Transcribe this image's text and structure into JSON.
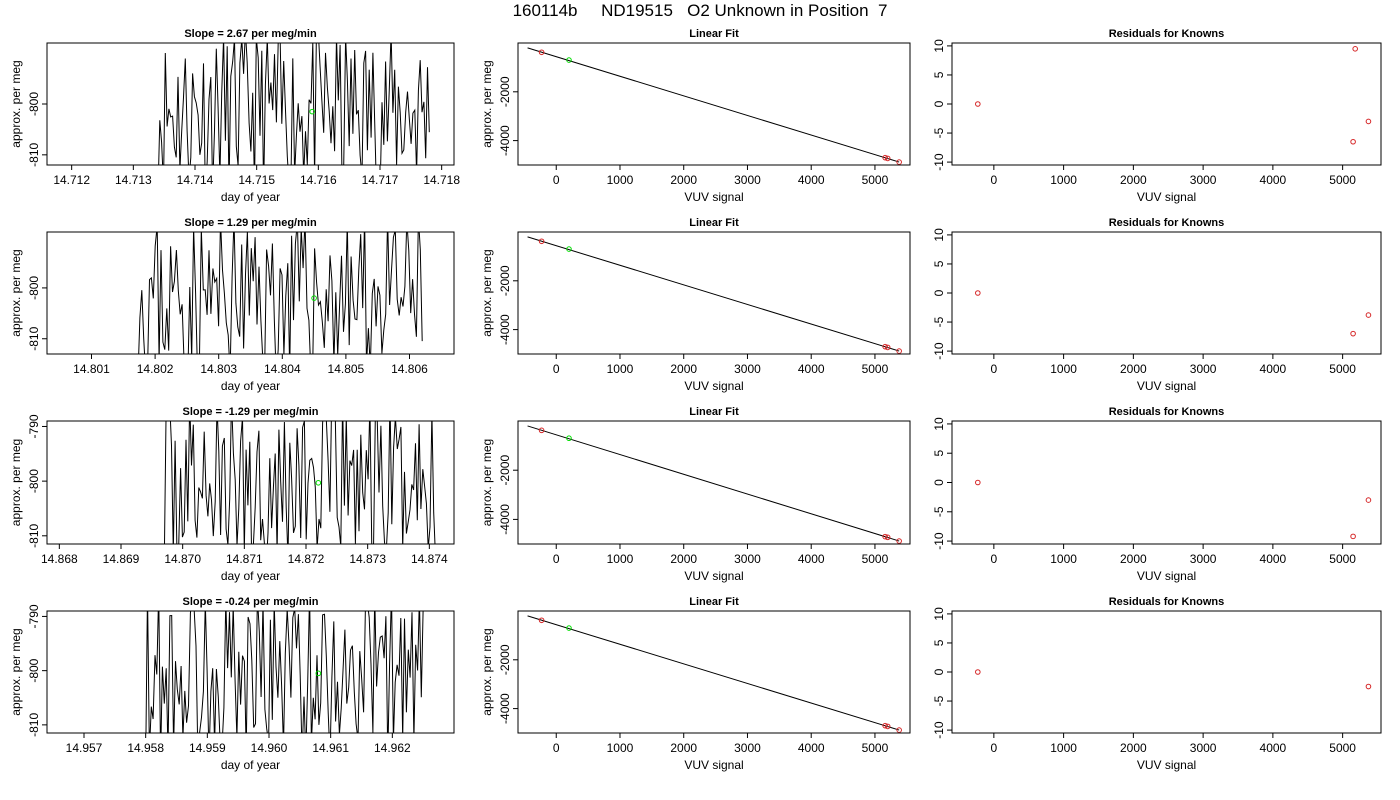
{
  "title": "160114b     ND19515   O2 Unknown in Position  7",
  "colors": {
    "line": "#000000",
    "known_point": "#d62728",
    "unknown_point": "#00dd00",
    "frame": "#000000"
  },
  "chart_data": [
    {
      "type": "line",
      "panel": "time-series-1",
      "title": "Slope =  2.67  per meg/min",
      "xlabel": "day of year",
      "ylabel": "approx. per meg",
      "xlim": [
        14.7116,
        14.7182
      ],
      "ylim": [
        -812,
        -788
      ],
      "xticks": [
        "14.712",
        "14.713",
        "14.714",
        "14.715",
        "14.716",
        "14.717",
        "14.718"
      ],
      "yticks": [
        "-810",
        "-800"
      ],
      "x_start": 14.7134,
      "x_end": 14.7178,
      "mean_point": [
        14.7159,
        -801.5
      ],
      "seed": 11
    },
    {
      "type": "scatter",
      "panel": "linear-fit-1",
      "title": "Linear Fit",
      "xlabel": "VUV signal",
      "ylabel": "approx. per meg",
      "xlim": [
        -600,
        5550
      ],
      "ylim": [
        -5000,
        0
      ],
      "xticks": [
        "0",
        "1000",
        "2000",
        "3000",
        "4000",
        "5000"
      ],
      "yticks": [
        "-2000",
        "-4000"
      ],
      "fit_line": {
        "x": [
          -450,
          5380
        ],
        "y": [
          -200,
          -4880
        ]
      },
      "knowns": [
        {
          "x": -230,
          "y": -380
        },
        {
          "x": 5160,
          "y": -4700
        },
        {
          "x": 5200,
          "y": -4730
        },
        {
          "x": 5380,
          "y": -4880
        }
      ],
      "unknown": {
        "x": 200,
        "y": -700
      }
    },
    {
      "type": "scatter",
      "panel": "residuals-1",
      "title": "Residuals for Knowns",
      "xlabel": "VUV signal",
      "ylabel": "",
      "xlim": [
        -600,
        5550
      ],
      "ylim": [
        -10.5,
        10.5
      ],
      "xticks": [
        "0",
        "1000",
        "2000",
        "3000",
        "4000",
        "5000"
      ],
      "yticks": [
        "-10",
        "-5",
        "0",
        "5",
        "10"
      ],
      "knowns": [
        {
          "x": -230,
          "y": 0
        },
        {
          "x": 5150,
          "y": -6.5
        },
        {
          "x": 5180,
          "y": 9.5
        },
        {
          "x": 5370,
          "y": -3.0
        }
      ]
    },
    {
      "type": "line",
      "panel": "time-series-2",
      "title": "Slope =  1.29  per meg/min",
      "xlabel": "day of year",
      "ylabel": "approx. per meg",
      "xlim": [
        14.8003,
        14.8067
      ],
      "ylim": [
        -813,
        -789
      ],
      "xticks": [
        "14.801",
        "14.802",
        "14.803",
        "14.804",
        "14.805",
        "14.806"
      ],
      "yticks": [
        "-810",
        "-800"
      ],
      "x_start": 14.8017,
      "x_end": 14.8062,
      "mean_point": [
        14.8045,
        -802
      ],
      "seed": 23
    },
    {
      "type": "scatter",
      "panel": "linear-fit-2",
      "title": "Linear Fit",
      "xlabel": "VUV signal",
      "ylabel": "approx. per meg",
      "xlim": [
        -600,
        5550
      ],
      "ylim": [
        -5000,
        0
      ],
      "xticks": [
        "0",
        "1000",
        "2000",
        "3000",
        "4000",
        "5000"
      ],
      "yticks": [
        "-2000",
        "-4000"
      ],
      "fit_line": {
        "x": [
          -450,
          5380
        ],
        "y": [
          -200,
          -4880
        ]
      },
      "knowns": [
        {
          "x": -230,
          "y": -380
        },
        {
          "x": 5160,
          "y": -4700
        },
        {
          "x": 5200,
          "y": -4730
        },
        {
          "x": 5380,
          "y": -4880
        }
      ],
      "unknown": {
        "x": 200,
        "y": -700
      }
    },
    {
      "type": "scatter",
      "panel": "residuals-2",
      "title": "Residuals for Knowns",
      "xlabel": "VUV signal",
      "ylabel": "",
      "xlim": [
        -600,
        5550
      ],
      "ylim": [
        -10.5,
        10.5
      ],
      "xticks": [
        "0",
        "1000",
        "2000",
        "3000",
        "4000",
        "5000"
      ],
      "yticks": [
        "-10",
        "-5",
        "0",
        "5",
        "10"
      ],
      "knowns": [
        {
          "x": -230,
          "y": 0
        },
        {
          "x": 5150,
          "y": -7.0
        },
        {
          "x": 5370,
          "y": -3.8
        }
      ]
    },
    {
      "type": "line",
      "panel": "time-series-3",
      "title": "Slope =  -1.29  per meg/min",
      "xlabel": "day of year",
      "ylabel": "approx. per meg",
      "xlim": [
        14.8678,
        14.8744
      ],
      "ylim": [
        -811.5,
        -789
      ],
      "xticks": [
        "14.868",
        "14.869",
        "14.870",
        "14.871",
        "14.872",
        "14.873",
        "14.874"
      ],
      "yticks": [
        "-810",
        "-800",
        "-790"
      ],
      "x_start": 14.8697,
      "x_end": 14.8741,
      "mean_point": [
        14.8722,
        -800.3
      ],
      "seed": 37
    },
    {
      "type": "scatter",
      "panel": "linear-fit-3",
      "title": "Linear Fit",
      "xlabel": "VUV signal",
      "ylabel": "approx. per meg",
      "xlim": [
        -600,
        5550
      ],
      "ylim": [
        -5000,
        0
      ],
      "xticks": [
        "0",
        "1000",
        "2000",
        "3000",
        "4000",
        "5000"
      ],
      "yticks": [
        "-2000",
        "-4000"
      ],
      "fit_line": {
        "x": [
          -450,
          5380
        ],
        "y": [
          -200,
          -4880
        ]
      },
      "knowns": [
        {
          "x": -230,
          "y": -380
        },
        {
          "x": 5160,
          "y": -4700
        },
        {
          "x": 5200,
          "y": -4730
        },
        {
          "x": 5380,
          "y": -4880
        }
      ],
      "unknown": {
        "x": 200,
        "y": -700
      }
    },
    {
      "type": "scatter",
      "panel": "residuals-3",
      "title": "Residuals for Knowns",
      "xlabel": "VUV signal",
      "ylabel": "",
      "xlim": [
        -600,
        5550
      ],
      "ylim": [
        -10.5,
        10.5
      ],
      "xticks": [
        "0",
        "1000",
        "2000",
        "3000",
        "4000",
        "5000"
      ],
      "yticks": [
        "-10",
        "-5",
        "0",
        "5",
        "10"
      ],
      "knowns": [
        {
          "x": -230,
          "y": 0
        },
        {
          "x": 5150,
          "y": -9.2
        },
        {
          "x": 5370,
          "y": -3.0
        }
      ]
    },
    {
      "type": "line",
      "panel": "time-series-4",
      "title": "Slope =  -0.24  per meg/min",
      "xlabel": "day of year",
      "ylabel": "approx. per meg",
      "xlim": [
        14.9564,
        14.963
      ],
      "ylim": [
        -811.5,
        -789
      ],
      "xticks": [
        "14.957",
        "14.958",
        "14.959",
        "14.960",
        "14.961",
        "14.962"
      ],
      "yticks": [
        "-810",
        "-800",
        "-790"
      ],
      "x_start": 14.958,
      "x_end": 14.9625,
      "mean_point": [
        14.9608,
        -800.5
      ],
      "seed": 53
    },
    {
      "type": "scatter",
      "panel": "linear-fit-4",
      "title": "Linear Fit",
      "xlabel": "VUV signal",
      "ylabel": "approx. per meg",
      "xlim": [
        -600,
        5550
      ],
      "ylim": [
        -5000,
        0
      ],
      "xticks": [
        "0",
        "1000",
        "2000",
        "3000",
        "4000",
        "5000"
      ],
      "yticks": [
        "-2000",
        "-4000"
      ],
      "fit_line": {
        "x": [
          -450,
          5380
        ],
        "y": [
          -200,
          -4880
        ]
      },
      "knowns": [
        {
          "x": -230,
          "y": -380
        },
        {
          "x": 5160,
          "y": -4700
        },
        {
          "x": 5200,
          "y": -4730
        },
        {
          "x": 5380,
          "y": -4880
        }
      ],
      "unknown": {
        "x": 200,
        "y": -700
      }
    },
    {
      "type": "scatter",
      "panel": "residuals-4",
      "title": "Residuals for Knowns",
      "xlabel": "VUV signal",
      "ylabel": "",
      "xlim": [
        -600,
        5550
      ],
      "ylim": [
        -10.5,
        10.5
      ],
      "xticks": [
        "0",
        "1000",
        "2000",
        "3000",
        "4000",
        "5000"
      ],
      "yticks": [
        "-10",
        "-5",
        "0",
        "5",
        "10"
      ],
      "knowns": [
        {
          "x": -230,
          "y": 0
        },
        {
          "x": 5370,
          "y": -2.5
        }
      ]
    }
  ]
}
